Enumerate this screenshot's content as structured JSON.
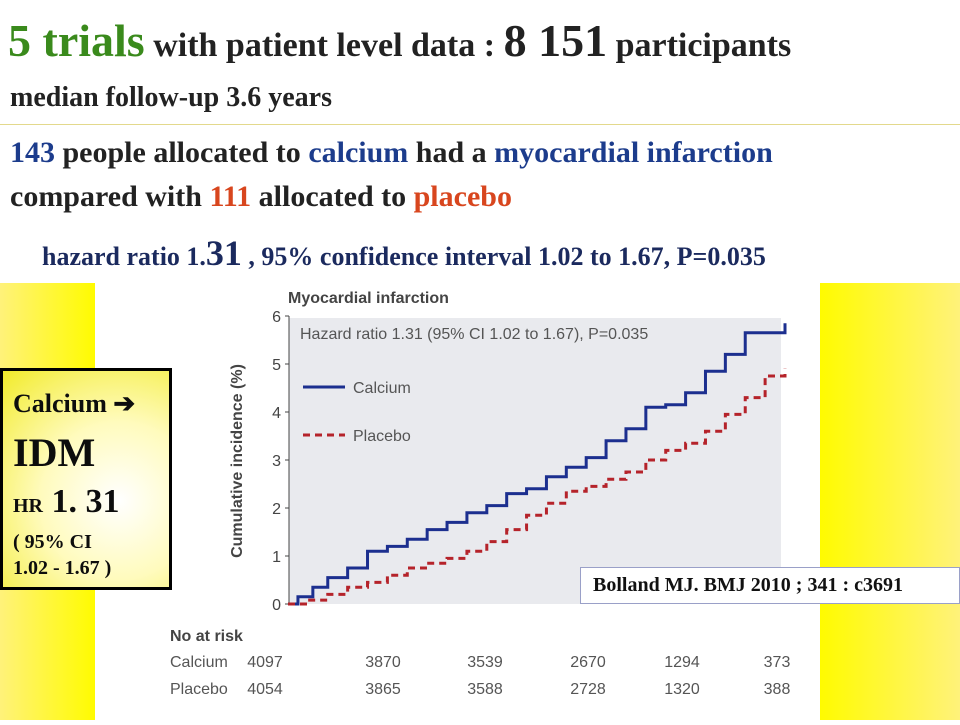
{
  "headline": {
    "trials": "5 trials",
    "with_text": " with patient level data : ",
    "participants_num": "8 151",
    "participants_text": " participants",
    "followup": "median follow-up 3.6 years"
  },
  "result": {
    "n_calcium": "143",
    "t1": " people allocated to ",
    "calcium": "calcium",
    "t2": " had a ",
    "mi": "myocardial infarction",
    "t3": "compared with ",
    "n_placebo": "111",
    "t4": " allocated to ",
    "placebo": "placebo"
  },
  "hr_line": {
    "prefix": "hazard ratio 1.",
    "big": "31",
    "suffix": " , 95% confidence interval 1.02 to 1.67, P=0.035"
  },
  "summary_box": {
    "title": "Calcium ➔",
    "outcome": "IDM",
    "hr_label": "HR",
    "hr_value": " 1. 31",
    "ci_line1": "( 95% CI",
    "ci_line2": "1.02 - 1.67 )"
  },
  "citation": "Bolland MJ.   BMJ 2010 ; 341 : c3691",
  "colors": {
    "calcium": "#1c2f8f",
    "placebo": "#b5232a",
    "axis_text": "#444444",
    "annotation_bg": "#e9eaee",
    "highlight_yellow": "#fffb00"
  },
  "chart_data": {
    "type": "line",
    "title": "Myocardial infarction",
    "annotation": "Hazard ratio 1.31 (95% CI 1.02 to 1.67), P=0.035",
    "ylabel": "Cumulative incidence (%)",
    "xlabel": "",
    "ylim": [
      0,
      6
    ],
    "yticks": [
      "0",
      "1",
      "2",
      "3",
      "4",
      "5",
      "6"
    ],
    "grid": false,
    "legend_position": "top-left",
    "series": [
      {
        "name": "Calcium",
        "style": "solid",
        "x": [
          0,
          0.1,
          0.25,
          0.4,
          0.6,
          0.8,
          1.0,
          1.2,
          1.4,
          1.6,
          1.8,
          2.0,
          2.2,
          2.4,
          2.6,
          2.8,
          3.0,
          3.2,
          3.4,
          3.6,
          3.8,
          4.0,
          4.2,
          4.4,
          4.6,
          4.8,
          5.0
        ],
        "values": [
          0,
          0.15,
          0.35,
          0.55,
          0.75,
          1.1,
          1.2,
          1.35,
          1.55,
          1.7,
          1.9,
          2.05,
          2.3,
          2.4,
          2.65,
          2.85,
          3.05,
          3.4,
          3.65,
          4.1,
          4.15,
          4.4,
          4.85,
          5.2,
          5.65,
          5.65,
          5.85
        ]
      },
      {
        "name": "Placebo",
        "style": "dashed",
        "x": [
          0,
          0.2,
          0.4,
          0.6,
          0.8,
          1.0,
          1.2,
          1.4,
          1.6,
          1.8,
          2.0,
          2.2,
          2.4,
          2.6,
          2.8,
          3.0,
          3.2,
          3.4,
          3.6,
          3.8,
          4.0,
          4.2,
          4.4,
          4.6,
          4.8,
          5.0
        ],
        "values": [
          0,
          0.08,
          0.2,
          0.35,
          0.45,
          0.6,
          0.75,
          0.85,
          0.95,
          1.1,
          1.3,
          1.55,
          1.85,
          2.1,
          2.35,
          2.45,
          2.6,
          2.75,
          3.0,
          3.2,
          3.35,
          3.6,
          3.95,
          4.3,
          4.75,
          4.9
        ]
      }
    ],
    "risk_table": {
      "title": "No at risk",
      "rows": [
        {
          "label": "Calcium",
          "values": [
            "4097",
            "3870",
            "3539",
            "2670",
            "1294",
            "373"
          ]
        },
        {
          "label": "Placebo",
          "values": [
            "4054",
            "3865",
            "3588",
            "2728",
            "1320",
            "388"
          ]
        }
      ]
    }
  }
}
